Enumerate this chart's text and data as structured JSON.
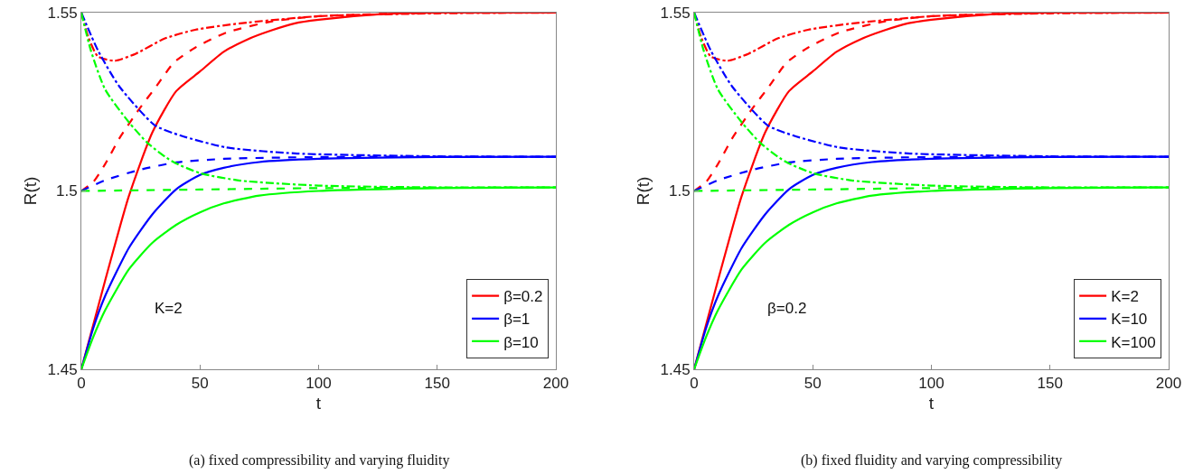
{
  "chart_data": [
    {
      "type": "line",
      "xlabel": "t",
      "ylabel": "R(t)",
      "xlim": [
        0,
        200
      ],
      "xticks": [
        0,
        50,
        100,
        150,
        200
      ],
      "ylim": [
        1.45,
        1.55
      ],
      "yticks": [
        1.45,
        1.5,
        1.55
      ],
      "grid": false,
      "legend": "bottom right",
      "annotations": [
        "K=2",
        "(a) fixed compressibility and varying fluidity"
      ],
      "series": [
        {
          "name": "β=0.2",
          "color": "#ff0000",
          "line_style": "solid",
          "x": [
            0,
            10,
            20,
            30,
            40,
            50,
            60,
            70,
            80,
            90,
            100,
            125,
            150,
            200
          ],
          "values": [
            1.45,
            1.4748,
            1.4985,
            1.5165,
            1.528,
            1.5335,
            1.539,
            1.5425,
            1.545,
            1.547,
            1.548,
            1.5495,
            1.55,
            1.55
          ]
        },
        {
          "name": "β=1",
          "color": "#0000ff",
          "line_style": "solid",
          "x": [
            0,
            5,
            10,
            20,
            30,
            40,
            50,
            60,
            75,
            100,
            150,
            200
          ],
          "values": [
            1.45,
            1.4615,
            1.4705,
            1.484,
            1.4935,
            1.5005,
            1.5045,
            1.5065,
            1.5081,
            1.509,
            1.5095,
            1.5096
          ]
        },
        {
          "name": "β=10",
          "color": "#00ff00",
          "line_style": "solid",
          "x": [
            0,
            5,
            10,
            20,
            30,
            40,
            50,
            60,
            75,
            100,
            150,
            200
          ],
          "values": [
            1.45,
            1.459,
            1.4665,
            1.478,
            1.4855,
            1.4905,
            1.494,
            1.4965,
            1.4987,
            1.5,
            1.5008,
            1.501
          ]
        },
        {
          "color": "#ff0000",
          "line_style": "dashed",
          "x": [
            0,
            5,
            10,
            16,
            24,
            32,
            39,
            48,
            61,
            80,
            100,
            150,
            200
          ],
          "values": [
            1.5,
            1.5025,
            1.5075,
            1.5147,
            1.5226,
            1.5297,
            1.536,
            1.5402,
            1.5444,
            1.5475,
            1.549,
            1.55,
            1.55
          ]
        },
        {
          "color": "#0000ff",
          "line_style": "dashed",
          "x": [
            0,
            10,
            25,
            40,
            60,
            100,
            200
          ],
          "values": [
            1.5,
            1.503,
            1.506,
            1.508,
            1.509,
            1.5095,
            1.5096
          ]
        },
        {
          "color": "#00ff00",
          "line_style": "dashed",
          "x": [
            0,
            50,
            100,
            200
          ],
          "values": [
            1.5,
            1.5004,
            1.5008,
            1.501
          ]
        },
        {
          "color": "#ff0000",
          "line_style": "dashdot",
          "x": [
            0,
            3,
            7,
            14,
            23,
            35,
            48,
            67,
            100,
            150,
            200
          ],
          "values": [
            1.55,
            1.543,
            1.5377,
            1.5365,
            1.5385,
            1.5427,
            1.5452,
            1.547,
            1.549,
            1.5498,
            1.55
          ]
        },
        {
          "color": "#0000ff",
          "line_style": "dashdot",
          "x": [
            0,
            7,
            16,
            31,
            42,
            61,
            91,
            150,
            200
          ],
          "values": [
            1.55,
            1.5394,
            1.5293,
            1.5184,
            1.5155,
            1.5122,
            1.5105,
            1.5097,
            1.5096
          ]
        },
        {
          "color": "#00ff00",
          "line_style": "dashdot",
          "x": [
            0,
            4,
            10,
            20,
            28,
            38,
            50,
            67,
            100,
            150,
            200
          ],
          "values": [
            1.55,
            1.5394,
            1.5285,
            1.5193,
            1.5134,
            1.5084,
            1.505,
            1.5029,
            1.5015,
            1.501,
            1.501
          ]
        }
      ]
    },
    {
      "type": "line",
      "xlabel": "t",
      "ylabel": "R(t)",
      "xlim": [
        0,
        200
      ],
      "xticks": [
        0,
        50,
        100,
        150,
        200
      ],
      "ylim": [
        1.45,
        1.55
      ],
      "yticks": [
        1.45,
        1.5,
        1.55
      ],
      "grid": false,
      "legend": "bottom right",
      "annotations": [
        "β=0.2",
        "(b) fixed fluidity and varying compressibility"
      ],
      "series": [
        {
          "name": "K=2",
          "color": "#ff0000",
          "line_style": "solid",
          "x": [
            0,
            10,
            20,
            30,
            40,
            50,
            60,
            70,
            80,
            90,
            100,
            125,
            150,
            200
          ],
          "values": [
            1.45,
            1.4748,
            1.4985,
            1.5165,
            1.528,
            1.5335,
            1.539,
            1.5425,
            1.545,
            1.547,
            1.548,
            1.5495,
            1.55,
            1.55
          ]
        },
        {
          "name": "K=10",
          "color": "#0000ff",
          "line_style": "solid",
          "x": [
            0,
            5,
            10,
            20,
            30,
            40,
            50,
            60,
            75,
            100,
            150,
            200
          ],
          "values": [
            1.45,
            1.4615,
            1.4705,
            1.484,
            1.4935,
            1.5005,
            1.5045,
            1.5065,
            1.5081,
            1.509,
            1.5095,
            1.5096
          ]
        },
        {
          "name": "K=100",
          "color": "#00ff00",
          "line_style": "solid",
          "x": [
            0,
            5,
            10,
            20,
            30,
            40,
            50,
            60,
            75,
            100,
            150,
            200
          ],
          "values": [
            1.45,
            1.459,
            1.4665,
            1.478,
            1.4855,
            1.4905,
            1.494,
            1.4965,
            1.4987,
            1.5,
            1.5008,
            1.501
          ]
        },
        {
          "color": "#ff0000",
          "line_style": "dashed",
          "x": [
            0,
            5,
            10,
            16,
            24,
            32,
            39,
            48,
            61,
            80,
            100,
            150,
            200
          ],
          "values": [
            1.5,
            1.5025,
            1.5075,
            1.5147,
            1.5226,
            1.5297,
            1.536,
            1.5402,
            1.5444,
            1.5475,
            1.549,
            1.55,
            1.55
          ]
        },
        {
          "color": "#0000ff",
          "line_style": "dashed",
          "x": [
            0,
            10,
            25,
            40,
            60,
            100,
            200
          ],
          "values": [
            1.5,
            1.503,
            1.506,
            1.508,
            1.509,
            1.5095,
            1.5096
          ]
        },
        {
          "color": "#00ff00",
          "line_style": "dashed",
          "x": [
            0,
            50,
            100,
            200
          ],
          "values": [
            1.5,
            1.5004,
            1.5008,
            1.501
          ]
        },
        {
          "color": "#ff0000",
          "line_style": "dashdot",
          "x": [
            0,
            3,
            7,
            14,
            23,
            35,
            48,
            67,
            100,
            150,
            200
          ],
          "values": [
            1.55,
            1.543,
            1.5377,
            1.5365,
            1.5385,
            1.5427,
            1.5452,
            1.547,
            1.549,
            1.5498,
            1.55
          ]
        },
        {
          "color": "#0000ff",
          "line_style": "dashdot",
          "x": [
            0,
            7,
            16,
            31,
            42,
            61,
            91,
            150,
            200
          ],
          "values": [
            1.55,
            1.5394,
            1.5293,
            1.5184,
            1.5155,
            1.5122,
            1.5105,
            1.5097,
            1.5096
          ]
        },
        {
          "color": "#00ff00",
          "line_style": "dashdot",
          "x": [
            0,
            4,
            10,
            20,
            28,
            38,
            50,
            67,
            100,
            150,
            200
          ],
          "values": [
            1.55,
            1.5394,
            1.5285,
            1.5193,
            1.5134,
            1.5084,
            1.505,
            1.5029,
            1.5015,
            1.501,
            1.501
          ]
        }
      ]
    }
  ]
}
